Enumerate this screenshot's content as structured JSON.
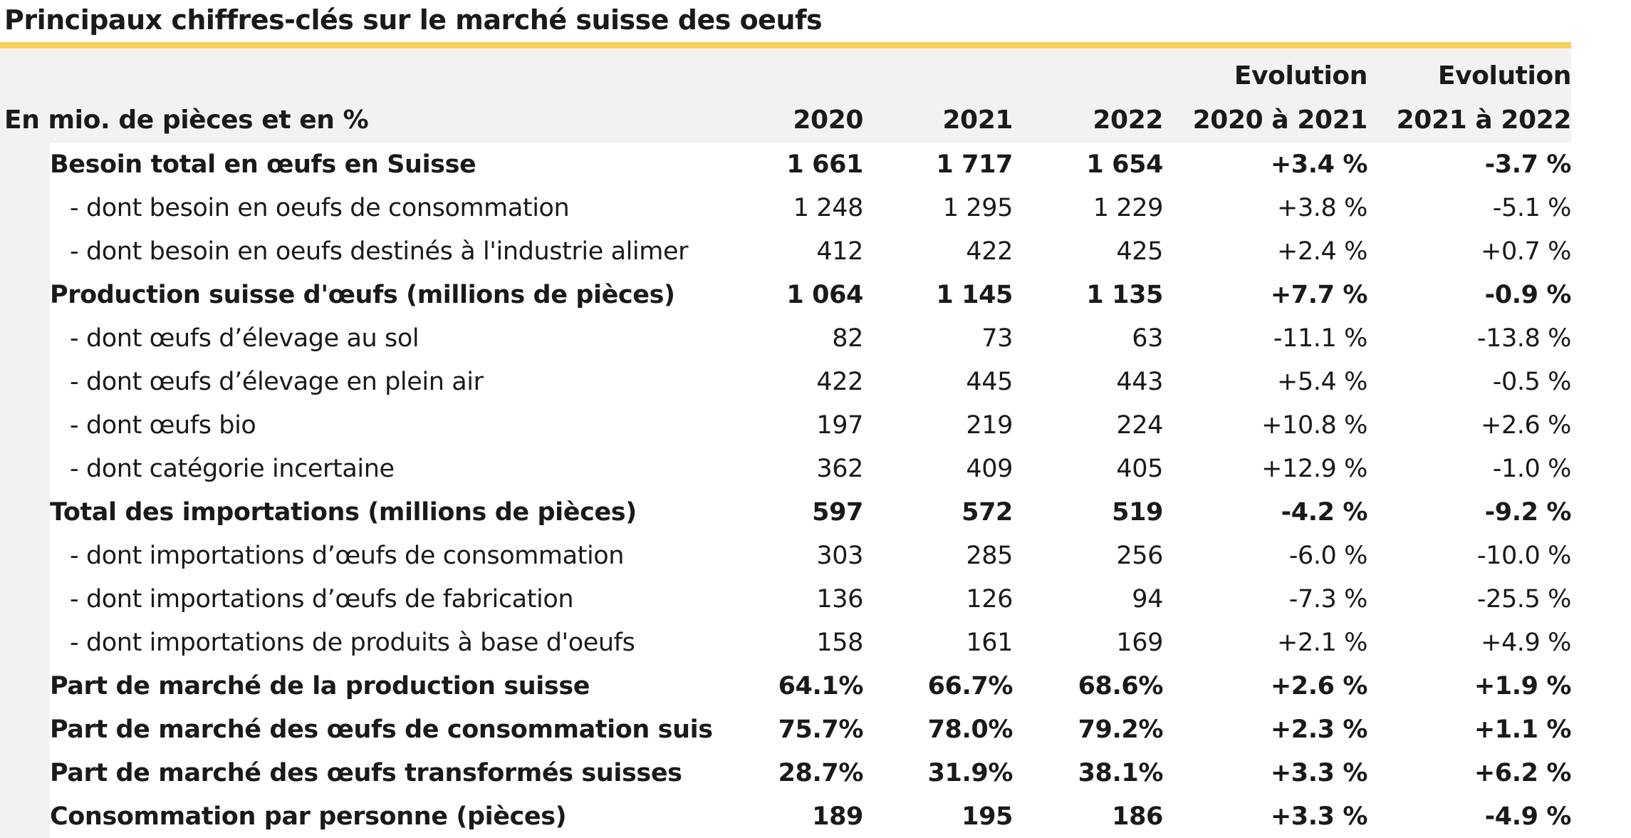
{
  "title": "Principaux chiffres-clés sur le marché suisse des oeufs",
  "header": {
    "unit_label": "En mio. de pièces et en %",
    "years": [
      "2020",
      "2021",
      "2022"
    ],
    "evolution1_top": "Evolution",
    "evolution1_bottom": "2020 à 2021",
    "evolution2_top": "Evolution",
    "evolution2_bottom": "2021 à 2022"
  },
  "colors": {
    "accent_rule": "#f2d35a",
    "header_band": "#f2f2f2"
  },
  "rows": [
    {
      "label": "Besoin total en œufs en Suisse",
      "v2020": "1 661",
      "v2021": "1 717",
      "v2022": "1 654",
      "e1": "+3.4 %",
      "e2": "-3.7 %"
    },
    {
      "label": "- dont besoin en oeufs de consommation",
      "v2020": "1 248",
      "v2021": "1 295",
      "v2022": "1 229",
      "e1": "+3.8 %",
      "e2": "-5.1 %"
    },
    {
      "label": "- dont besoin en oeufs destinés à l'industrie alimer",
      "v2020": "412",
      "v2021": "422",
      "v2022": "425",
      "e1": "+2.4 %",
      "e2": "+0.7 %"
    },
    {
      "label": "Production suisse d'œufs (millions de pièces)",
      "v2020": "1 064",
      "v2021": "1 145",
      "v2022": "1 135",
      "e1": "+7.7 %",
      "e2": "-0.9 %"
    },
    {
      "label": "- dont œufs d’élevage au sol",
      "v2020": "82",
      "v2021": "73",
      "v2022": "63",
      "e1": "-11.1 %",
      "e2": "-13.8 %"
    },
    {
      "label": "- dont œufs d’élevage en plein air",
      "v2020": "422",
      "v2021": "445",
      "v2022": "443",
      "e1": "+5.4 %",
      "e2": "-0.5 %"
    },
    {
      "label": "- dont œufs bio",
      "v2020": "197",
      "v2021": "219",
      "v2022": "224",
      "e1": "+10.8 %",
      "e2": "+2.6 %"
    },
    {
      "label": "- dont catégorie incertaine",
      "v2020": "362",
      "v2021": "409",
      "v2022": "405",
      "e1": "+12.9 %",
      "e2": "-1.0 %"
    },
    {
      "label": "Total des importations (millions de pièces)",
      "v2020": "597",
      "v2021": "572",
      "v2022": "519",
      "e1": "-4.2 %",
      "e2": "-9.2 %"
    },
    {
      "label": "- dont importations d’œufs de consommation",
      "v2020": "303",
      "v2021": "285",
      "v2022": "256",
      "e1": "-6.0 %",
      "e2": "-10.0 %"
    },
    {
      "label": "- dont importations d’œufs de fabrication",
      "v2020": "136",
      "v2021": "126",
      "v2022": "94",
      "e1": "-7.3 %",
      "e2": "-25.5 %"
    },
    {
      "label": "- dont importations de produits à base d'oeufs",
      "v2020": "158",
      "v2021": "161",
      "v2022": "169",
      "e1": "+2.1 %",
      "e2": "+4.9 %"
    },
    {
      "label": "Part de marché de la production suisse",
      "v2020": "64.1%",
      "v2021": "66.7%",
      "v2022": "68.6%",
      "e1": "+2.6 %",
      "e2": "+1.9 %"
    },
    {
      "label": "Part de marché des œufs de consommation suis",
      "v2020": "75.7%",
      "v2021": "78.0%",
      "v2022": "79.2%",
      "e1": "+2.3 %",
      "e2": "+1.1 %"
    },
    {
      "label": "Part de marché des œufs transformés suisses",
      "v2020": "28.7%",
      "v2021": "31.9%",
      "v2022": "38.1%",
      "e1": "+3.3 %",
      "e2": "+6.2 %"
    },
    {
      "label": "Consommation par personne (pièces)",
      "v2020": "189",
      "v2021": "195",
      "v2022": "186",
      "e1": "+3.3 %",
      "e2": "-4.9 %"
    }
  ]
}
